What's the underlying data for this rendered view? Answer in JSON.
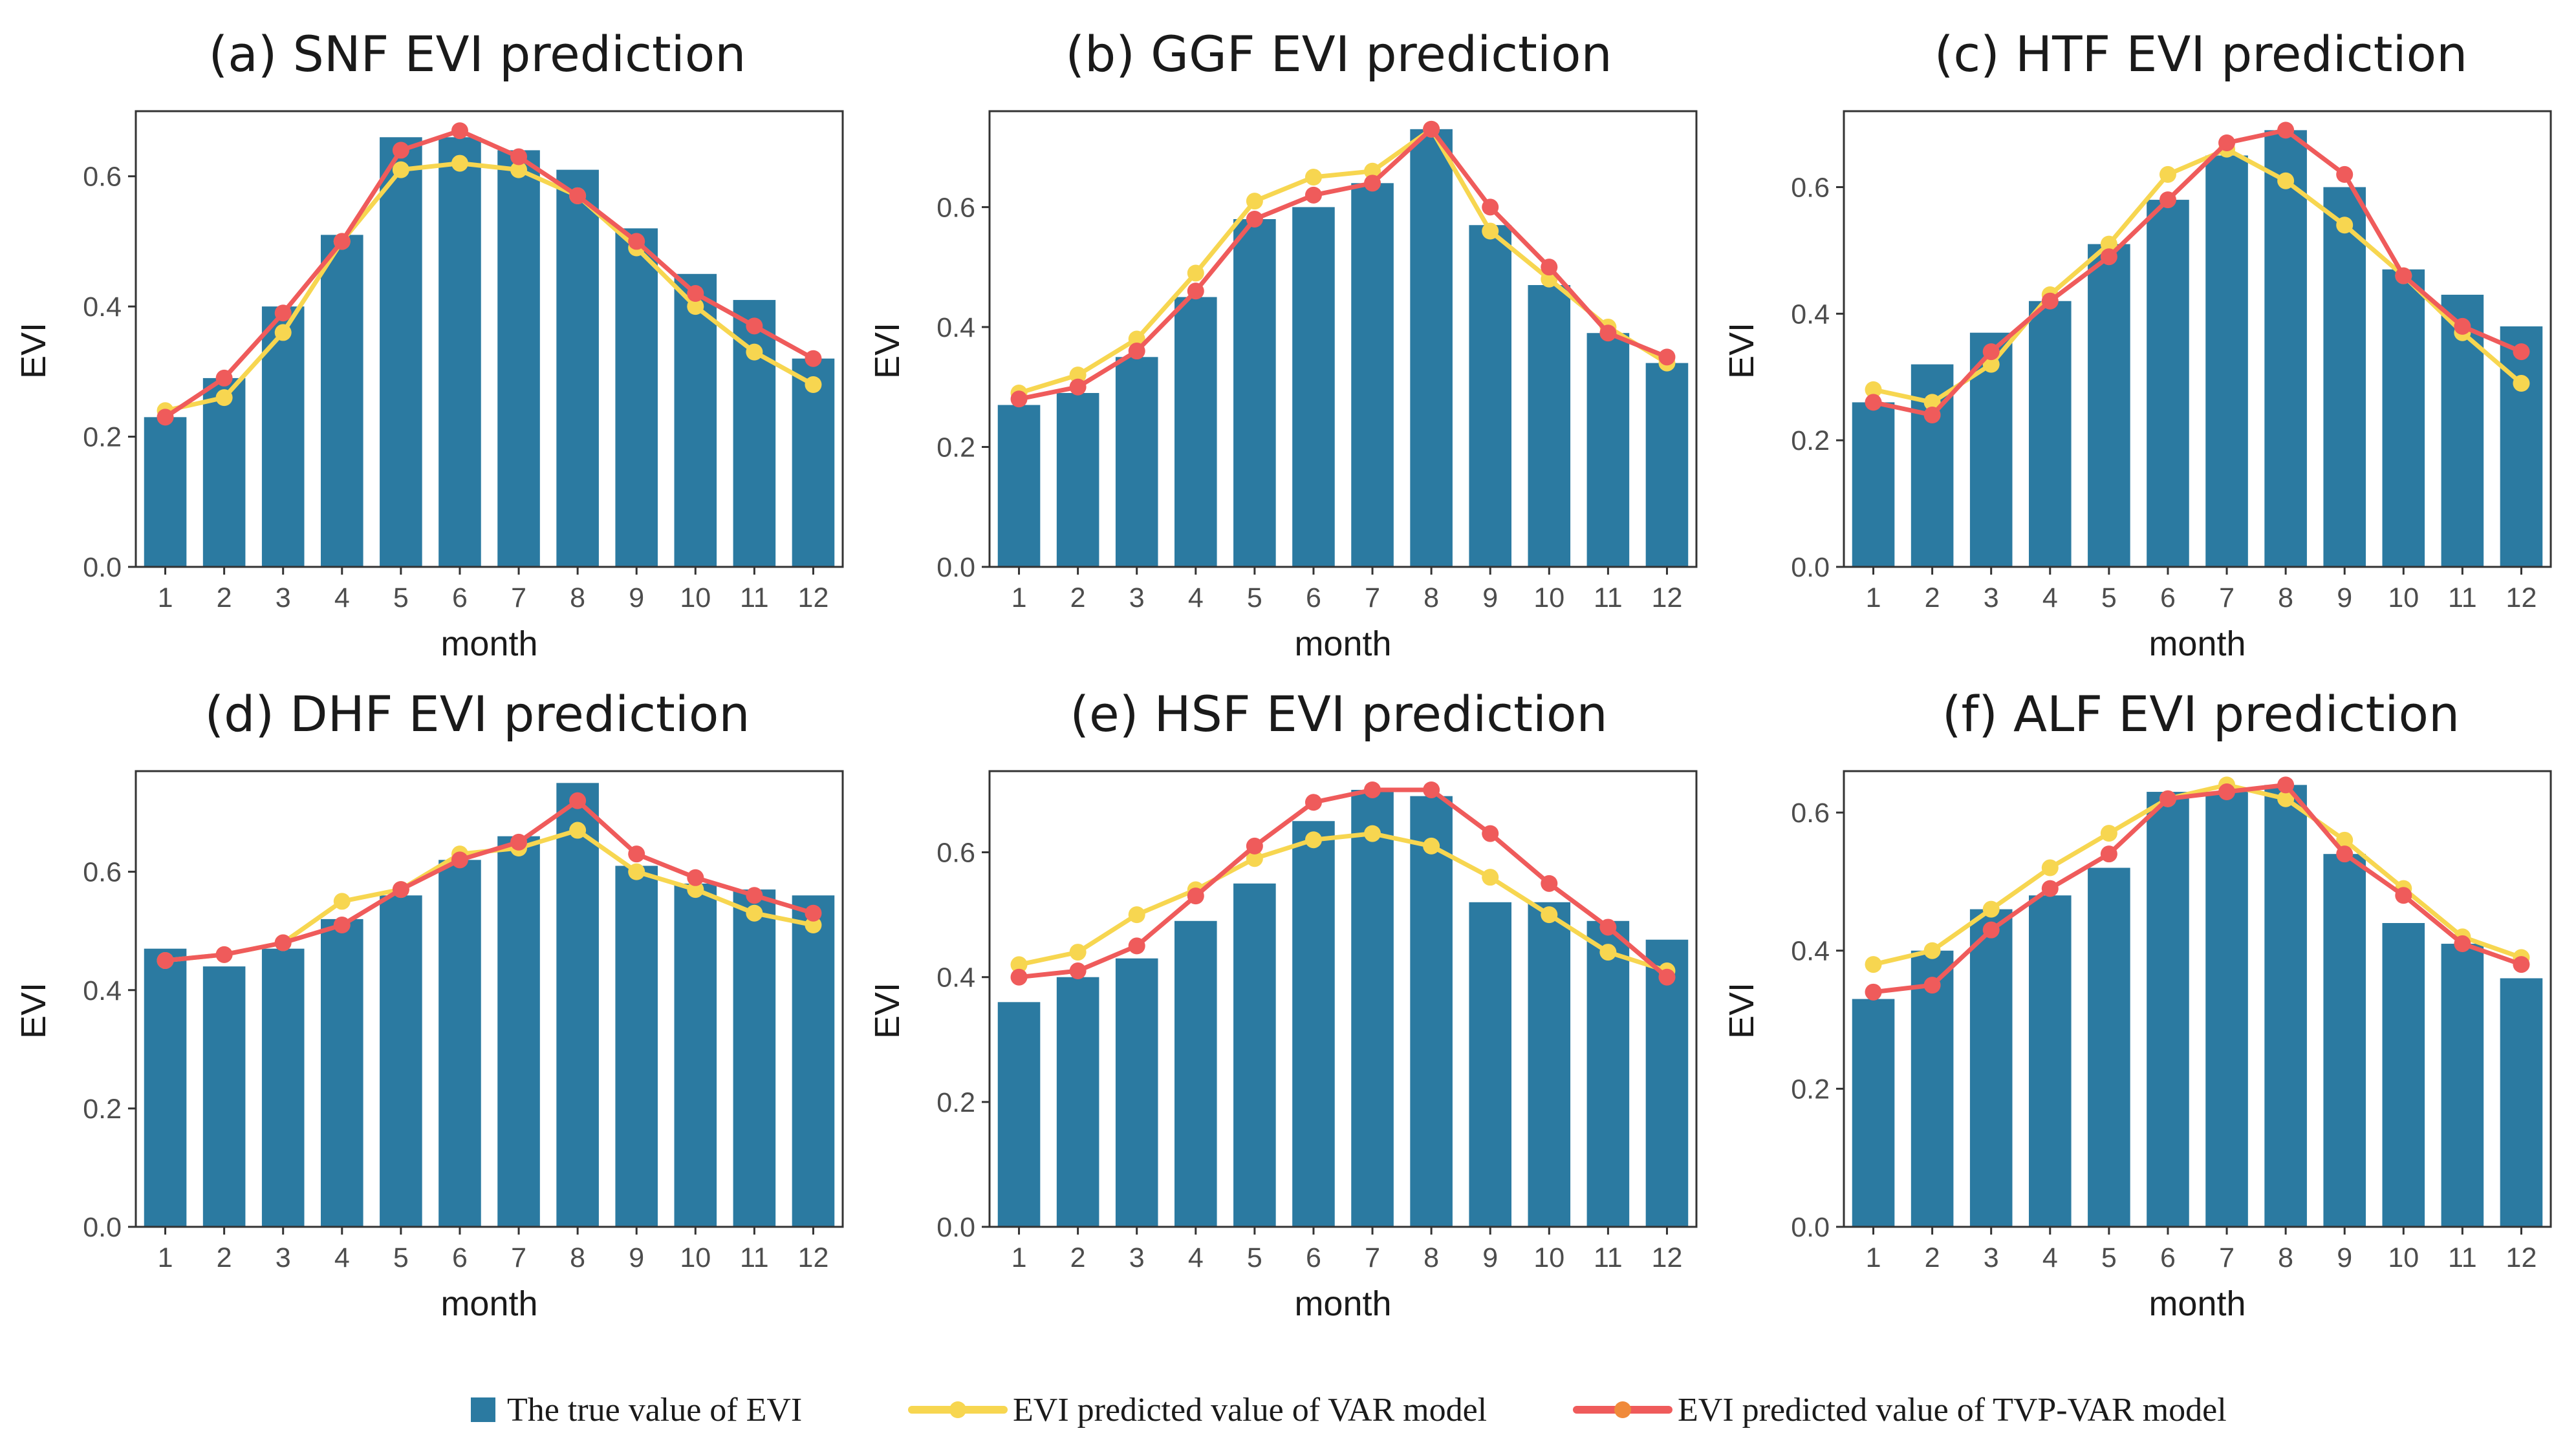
{
  "colors": {
    "bar": "#2b7aa1",
    "var_line": "#f7d650",
    "tvp_line": "#ef5b5b",
    "tvp_legend_point": "#f08a3a",
    "axis": "#333333"
  },
  "legend": {
    "true": "The true value of EVI",
    "var": "EVI predicted value of VAR model",
    "tvp": "EVI predicted value of TVP-VAR model"
  },
  "chart_data": [
    {
      "type": "bar+line",
      "title": "(a) SNF EVI prediction",
      "xlabel": "month",
      "ylabel": "EVI",
      "categories": [
        "1",
        "2",
        "3",
        "4",
        "5",
        "6",
        "7",
        "8",
        "9",
        "10",
        "11",
        "12"
      ],
      "ylim": [
        0,
        0.7
      ],
      "yticks": [
        "0.0",
        "0.2",
        "0.4",
        "0.6"
      ],
      "series": [
        {
          "name": "The true value of EVI",
          "kind": "bar",
          "values": [
            0.23,
            0.29,
            0.4,
            0.51,
            0.66,
            0.66,
            0.64,
            0.61,
            0.52,
            0.45,
            0.41,
            0.32
          ]
        },
        {
          "name": "EVI predicted value of VAR model",
          "kind": "line",
          "values": [
            0.24,
            0.26,
            0.36,
            0.5,
            0.61,
            0.62,
            0.61,
            0.57,
            0.49,
            0.4,
            0.33,
            0.28
          ]
        },
        {
          "name": "EVI predicted value of TVP-VAR model",
          "kind": "line",
          "values": [
            0.23,
            0.29,
            0.39,
            0.5,
            0.64,
            0.67,
            0.63,
            0.57,
            0.5,
            0.42,
            0.37,
            0.32
          ]
        }
      ]
    },
    {
      "type": "bar+line",
      "title": "(b) GGF EVI prediction",
      "xlabel": "month",
      "ylabel": "EVI",
      "categories": [
        "1",
        "2",
        "3",
        "4",
        "5",
        "6",
        "7",
        "8",
        "9",
        "10",
        "11",
        "12"
      ],
      "ylim": [
        0,
        0.76
      ],
      "yticks": [
        "0.0",
        "0.2",
        "0.4",
        "0.6"
      ],
      "series": [
        {
          "name": "The true value of EVI",
          "kind": "bar",
          "values": [
            0.27,
            0.29,
            0.35,
            0.45,
            0.58,
            0.6,
            0.64,
            0.73,
            0.57,
            0.47,
            0.39,
            0.34
          ]
        },
        {
          "name": "EVI predicted value of VAR model",
          "kind": "line",
          "values": [
            0.29,
            0.32,
            0.38,
            0.49,
            0.61,
            0.65,
            0.66,
            0.73,
            0.56,
            0.48,
            0.4,
            0.34
          ]
        },
        {
          "name": "EVI predicted value of TVP-VAR model",
          "kind": "line",
          "values": [
            0.28,
            0.3,
            0.36,
            0.46,
            0.58,
            0.62,
            0.64,
            0.73,
            0.6,
            0.5,
            0.39,
            0.35
          ]
        }
      ]
    },
    {
      "type": "bar+line",
      "title": "(c) HTF EVI prediction",
      "xlabel": "month",
      "ylabel": "EVI",
      "categories": [
        "1",
        "2",
        "3",
        "4",
        "5",
        "6",
        "7",
        "8",
        "9",
        "10",
        "11",
        "12"
      ],
      "ylim": [
        0,
        0.72
      ],
      "yticks": [
        "0.0",
        "0.2",
        "0.4",
        "0.6"
      ],
      "series": [
        {
          "name": "The true value of EVI",
          "kind": "bar",
          "values": [
            0.26,
            0.32,
            0.37,
            0.42,
            0.51,
            0.58,
            0.65,
            0.69,
            0.6,
            0.47,
            0.43,
            0.38
          ]
        },
        {
          "name": "EVI predicted value of VAR model",
          "kind": "line",
          "values": [
            0.28,
            0.26,
            0.32,
            0.43,
            0.51,
            0.62,
            0.66,
            0.61,
            0.54,
            0.46,
            0.37,
            0.29
          ]
        },
        {
          "name": "EVI predicted value of TVP-VAR model",
          "kind": "line",
          "values": [
            0.26,
            0.24,
            0.34,
            0.42,
            0.49,
            0.58,
            0.67,
            0.69,
            0.62,
            0.46,
            0.38,
            0.34
          ]
        }
      ]
    },
    {
      "type": "bar+line",
      "title": "(d) DHF EVI prediction",
      "xlabel": "month",
      "ylabel": "EVI",
      "categories": [
        "1",
        "2",
        "3",
        "4",
        "5",
        "6",
        "7",
        "8",
        "9",
        "10",
        "11",
        "12"
      ],
      "ylim": [
        0,
        0.77
      ],
      "yticks": [
        "0.0",
        "0.2",
        "0.4",
        "0.6"
      ],
      "series": [
        {
          "name": "The true value of EVI",
          "kind": "bar",
          "values": [
            0.47,
            0.44,
            0.47,
            0.52,
            0.56,
            0.62,
            0.66,
            0.75,
            0.61,
            0.58,
            0.57,
            0.56
          ]
        },
        {
          "name": "EVI predicted value of VAR model",
          "kind": "line",
          "values": [
            0.45,
            0.46,
            0.48,
            0.55,
            0.57,
            0.63,
            0.64,
            0.67,
            0.6,
            0.57,
            0.53,
            0.51
          ]
        },
        {
          "name": "EVI predicted value of TVP-VAR model",
          "kind": "line",
          "values": [
            0.45,
            0.46,
            0.48,
            0.51,
            0.57,
            0.62,
            0.65,
            0.72,
            0.63,
            0.59,
            0.56,
            0.53
          ]
        }
      ]
    },
    {
      "type": "bar+line",
      "title": "(e) HSF EVI prediction",
      "xlabel": "month",
      "ylabel": "EVI",
      "categories": [
        "1",
        "2",
        "3",
        "4",
        "5",
        "6",
        "7",
        "8",
        "9",
        "10",
        "11",
        "12"
      ],
      "ylim": [
        0,
        0.73
      ],
      "yticks": [
        "0.0",
        "0.2",
        "0.4",
        "0.6"
      ],
      "series": [
        {
          "name": "The true value of EVI",
          "kind": "bar",
          "values": [
            0.36,
            0.4,
            0.43,
            0.49,
            0.55,
            0.65,
            0.7,
            0.69,
            0.52,
            0.52,
            0.49,
            0.46
          ]
        },
        {
          "name": "EVI predicted value of VAR model",
          "kind": "line",
          "values": [
            0.42,
            0.44,
            0.5,
            0.54,
            0.59,
            0.62,
            0.63,
            0.61,
            0.56,
            0.5,
            0.44,
            0.41
          ]
        },
        {
          "name": "EVI predicted value of TVP-VAR model",
          "kind": "line",
          "values": [
            0.4,
            0.41,
            0.45,
            0.53,
            0.61,
            0.68,
            0.7,
            0.7,
            0.63,
            0.55,
            0.48,
            0.4
          ]
        }
      ]
    },
    {
      "type": "bar+line",
      "title": "(f) ALF EVI prediction",
      "xlabel": "month",
      "ylabel": "EVI",
      "categories": [
        "1",
        "2",
        "3",
        "4",
        "5",
        "6",
        "7",
        "8",
        "9",
        "10",
        "11",
        "12"
      ],
      "ylim": [
        0,
        0.66
      ],
      "yticks": [
        "0.0",
        "0.2",
        "0.4",
        "0.6"
      ],
      "series": [
        {
          "name": "The true value of EVI",
          "kind": "bar",
          "values": [
            0.33,
            0.4,
            0.46,
            0.48,
            0.52,
            0.63,
            0.63,
            0.64,
            0.54,
            0.44,
            0.41,
            0.36
          ]
        },
        {
          "name": "EVI predicted value of VAR model",
          "kind": "line",
          "values": [
            0.38,
            0.4,
            0.46,
            0.52,
            0.57,
            0.62,
            0.64,
            0.62,
            0.56,
            0.49,
            0.42,
            0.39
          ]
        },
        {
          "name": "EVI predicted value of TVP-VAR model",
          "kind": "line",
          "values": [
            0.34,
            0.35,
            0.43,
            0.49,
            0.54,
            0.62,
            0.63,
            0.64,
            0.54,
            0.48,
            0.41,
            0.38
          ]
        }
      ]
    }
  ]
}
